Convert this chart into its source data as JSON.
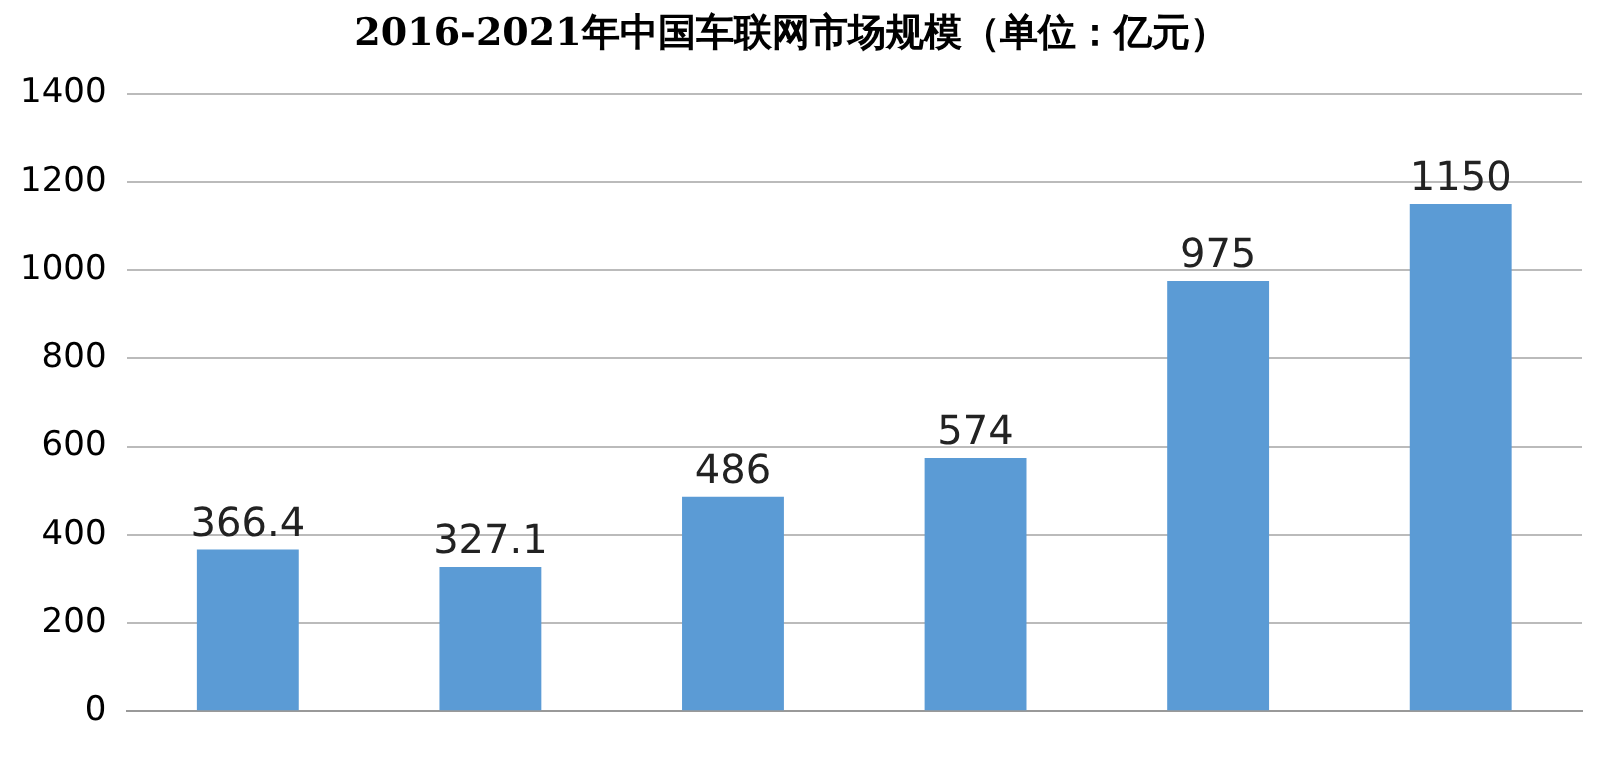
{
  "chart_data": {
    "type": "bar",
    "title": "2016-2021年中国车联网市场规模（单位：亿元）",
    "categories": [
      null,
      null,
      null,
      null,
      null,
      null
    ],
    "values": [
      366.4,
      327.1,
      486,
      574,
      975,
      1150
    ],
    "color": "#5b9bd5",
    "ylim": [
      0,
      1400
    ],
    "yticks": [
      0,
      200,
      400,
      600,
      800,
      1000,
      1200,
      1400
    ],
    "grid": "y",
    "data_labels": true,
    "legend": false
  }
}
